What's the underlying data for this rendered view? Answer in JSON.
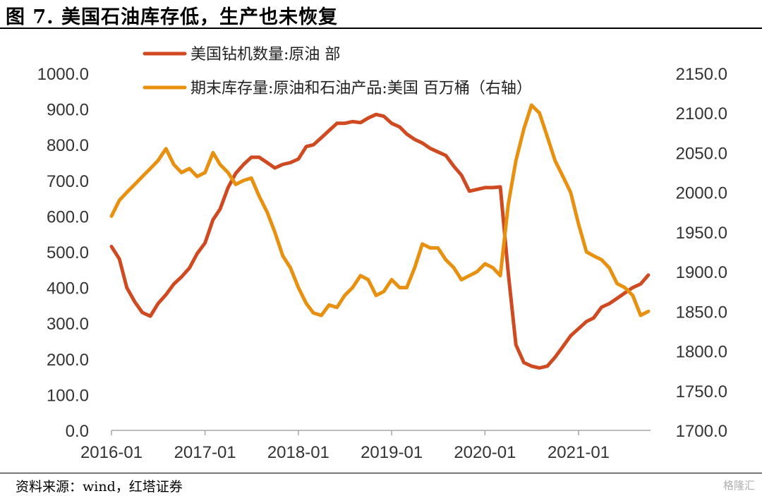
{
  "header": {
    "title": "图 7. 美国石油库存低，生产也未恢复"
  },
  "footer": {
    "source": "资料来源：wind，红塔证券",
    "watermark": "格隆汇"
  },
  "colors": {
    "rig": "#cf4a20",
    "inventory": "#e8900f",
    "axis": "#a6a6a6"
  },
  "chart_data": {
    "type": "line",
    "x_ticks": [
      "2016-01",
      "2017-01",
      "2018-01",
      "2019-01",
      "2020-01",
      "2021-01"
    ],
    "y_left": {
      "range": [
        0,
        1000
      ],
      "ticks": [
        "0.0",
        "100.0",
        "200.0",
        "300.0",
        "400.0",
        "500.0",
        "600.0",
        "700.0",
        "800.0",
        "900.0",
        "1000.0"
      ]
    },
    "y_right": {
      "range": [
        1700,
        2150
      ],
      "ticks": [
        "1700.0",
        "1750.0",
        "1800.0",
        "1850.0",
        "1900.0",
        "1950.0",
        "2000.0",
        "2050.0",
        "2100.0",
        "2150.0"
      ]
    },
    "legend_position": "top",
    "series": [
      {
        "name": "美国钻机数量:原油 部",
        "axis": "left",
        "color": "#cf4a20",
        "points": [
          [
            "2016-01-01",
            515
          ],
          [
            "2016-02-01",
            480
          ],
          [
            "2016-03-01",
            400
          ],
          [
            "2016-04-01",
            360
          ],
          [
            "2016-05-01",
            330
          ],
          [
            "2016-06-01",
            320
          ],
          [
            "2016-07-01",
            355
          ],
          [
            "2016-08-01",
            380
          ],
          [
            "2016-09-01",
            410
          ],
          [
            "2016-10-01",
            430
          ],
          [
            "2016-11-01",
            455
          ],
          [
            "2016-12-01",
            495
          ],
          [
            "2017-01-01",
            525
          ],
          [
            "2017-02-01",
            590
          ],
          [
            "2017-03-01",
            620
          ],
          [
            "2017-04-01",
            680
          ],
          [
            "2017-05-01",
            720
          ],
          [
            "2017-06-01",
            745
          ],
          [
            "2017-07-01",
            765
          ],
          [
            "2017-08-01",
            765
          ],
          [
            "2017-09-01",
            750
          ],
          [
            "2017-10-01",
            735
          ],
          [
            "2017-11-01",
            745
          ],
          [
            "2017-12-01",
            750
          ],
          [
            "2018-01-01",
            760
          ],
          [
            "2018-02-01",
            795
          ],
          [
            "2018-03-01",
            800
          ],
          [
            "2018-04-01",
            820
          ],
          [
            "2018-05-01",
            840
          ],
          [
            "2018-06-01",
            860
          ],
          [
            "2018-07-01",
            860
          ],
          [
            "2018-08-01",
            865
          ],
          [
            "2018-09-01",
            862
          ],
          [
            "2018-10-01",
            875
          ],
          [
            "2018-11-01",
            885
          ],
          [
            "2018-12-01",
            880
          ],
          [
            "2019-01-01",
            860
          ],
          [
            "2019-02-01",
            850
          ],
          [
            "2019-03-01",
            830
          ],
          [
            "2019-04-01",
            815
          ],
          [
            "2019-05-01",
            805
          ],
          [
            "2019-06-01",
            790
          ],
          [
            "2019-07-01",
            780
          ],
          [
            "2019-08-01",
            770
          ],
          [
            "2019-09-01",
            740
          ],
          [
            "2019-10-01",
            715
          ],
          [
            "2019-11-01",
            670
          ],
          [
            "2019-12-01",
            675
          ],
          [
            "2020-01-01",
            680
          ],
          [
            "2020-02-01",
            680
          ],
          [
            "2020-03-01",
            682
          ],
          [
            "2020-04-01",
            440
          ],
          [
            "2020-05-01",
            240
          ],
          [
            "2020-06-01",
            190
          ],
          [
            "2020-07-01",
            180
          ],
          [
            "2020-08-01",
            175
          ],
          [
            "2020-09-01",
            180
          ],
          [
            "2020-10-01",
            205
          ],
          [
            "2020-11-01",
            235
          ],
          [
            "2020-12-01",
            265
          ],
          [
            "2021-01-01",
            285
          ],
          [
            "2021-02-01",
            305
          ],
          [
            "2021-03-01",
            315
          ],
          [
            "2021-04-01",
            345
          ],
          [
            "2021-05-01",
            355
          ],
          [
            "2021-06-01",
            370
          ],
          [
            "2021-07-01",
            385
          ],
          [
            "2021-08-01",
            400
          ],
          [
            "2021-09-01",
            410
          ],
          [
            "2021-10-01",
            435
          ]
        ]
      },
      {
        "name": "期末库存量:原油和石油产品:美国 百万桶（右轴）",
        "axis": "right",
        "color": "#e8900f",
        "points": [
          [
            "2016-01-01",
            1970
          ],
          [
            "2016-02-01",
            1990
          ],
          [
            "2016-03-01",
            2000
          ],
          [
            "2016-04-01",
            2010
          ],
          [
            "2016-05-01",
            2020
          ],
          [
            "2016-06-01",
            2030
          ],
          [
            "2016-07-01",
            2040
          ],
          [
            "2016-08-01",
            2055
          ],
          [
            "2016-09-01",
            2035
          ],
          [
            "2016-10-01",
            2025
          ],
          [
            "2016-11-01",
            2030
          ],
          [
            "2016-12-01",
            2020
          ],
          [
            "2017-01-01",
            2025
          ],
          [
            "2017-02-01",
            2050
          ],
          [
            "2017-03-01",
            2035
          ],
          [
            "2017-04-01",
            2025
          ],
          [
            "2017-05-01",
            2010
          ],
          [
            "2017-06-01",
            2015
          ],
          [
            "2017-07-01",
            2018
          ],
          [
            "2017-08-01",
            1995
          ],
          [
            "2017-09-01",
            1975
          ],
          [
            "2017-10-01",
            1950
          ],
          [
            "2017-11-01",
            1920
          ],
          [
            "2017-12-01",
            1905
          ],
          [
            "2018-01-01",
            1880
          ],
          [
            "2018-02-01",
            1860
          ],
          [
            "2018-03-01",
            1848
          ],
          [
            "2018-04-01",
            1845
          ],
          [
            "2018-05-01",
            1858
          ],
          [
            "2018-06-01",
            1855
          ],
          [
            "2018-07-01",
            1870
          ],
          [
            "2018-08-01",
            1880
          ],
          [
            "2018-09-01",
            1895
          ],
          [
            "2018-10-01",
            1890
          ],
          [
            "2018-11-01",
            1870
          ],
          [
            "2018-12-01",
            1875
          ],
          [
            "2019-01-01",
            1890
          ],
          [
            "2019-02-01",
            1880
          ],
          [
            "2019-03-01",
            1880
          ],
          [
            "2019-04-01",
            1905
          ],
          [
            "2019-05-01",
            1935
          ],
          [
            "2019-06-01",
            1930
          ],
          [
            "2019-07-01",
            1930
          ],
          [
            "2019-08-01",
            1915
          ],
          [
            "2019-09-01",
            1905
          ],
          [
            "2019-10-01",
            1890
          ],
          [
            "2019-11-01",
            1895
          ],
          [
            "2019-12-01",
            1900
          ],
          [
            "2020-01-01",
            1910
          ],
          [
            "2020-02-01",
            1905
          ],
          [
            "2020-03-01",
            1895
          ],
          [
            "2020-04-01",
            1985
          ],
          [
            "2020-05-01",
            2040
          ],
          [
            "2020-06-01",
            2080
          ],
          [
            "2020-07-01",
            2110
          ],
          [
            "2020-08-01",
            2100
          ],
          [
            "2020-09-01",
            2070
          ],
          [
            "2020-10-01",
            2040
          ],
          [
            "2020-11-01",
            2020
          ],
          [
            "2020-12-01",
            2000
          ],
          [
            "2021-01-01",
            1960
          ],
          [
            "2021-02-01",
            1925
          ],
          [
            "2021-03-01",
            1920
          ],
          [
            "2021-04-01",
            1915
          ],
          [
            "2021-05-01",
            1905
          ],
          [
            "2021-06-01",
            1885
          ],
          [
            "2021-07-01",
            1880
          ],
          [
            "2021-08-01",
            1870
          ],
          [
            "2021-09-01",
            1845
          ],
          [
            "2021-10-01",
            1850
          ]
        ]
      }
    ]
  }
}
